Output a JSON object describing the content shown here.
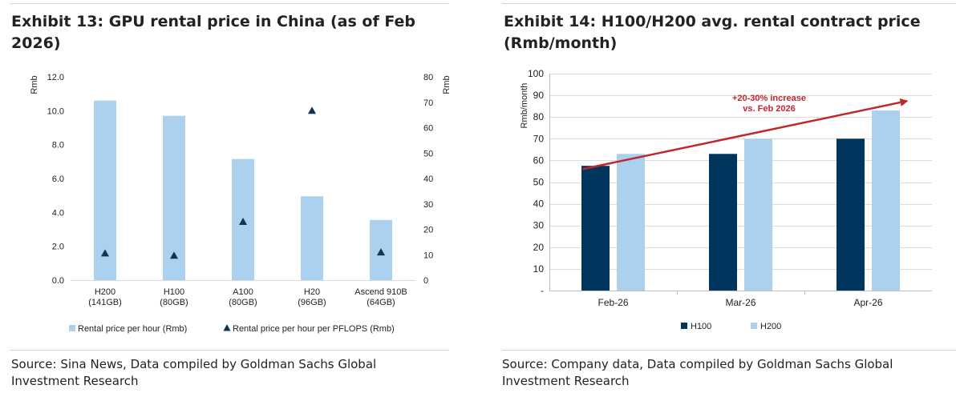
{
  "exhibits": [
    {
      "title": "Exhibit 13: GPU rental price in China (as of Feb 2026)",
      "source": "Source: Sina News, Data compiled by Goldman Sachs Global Investment Research"
    },
    {
      "title": "Exhibit 14: H100/H200 avg. rental contract price (Rmb/month)",
      "source": "Source: Company data, Data compiled by Goldman Sachs Global Investment Research"
    }
  ],
  "chart_data": [
    {
      "type": "bar",
      "categories": [
        [
          "H200",
          "(141GB)"
        ],
        [
          "H100",
          "(80GB)"
        ],
        [
          "A100",
          "(80GB)"
        ],
        [
          "H20",
          "(96GB)"
        ],
        [
          "Ascend 910B",
          "(64GB)"
        ]
      ],
      "series": [
        {
          "name": "Rental price per hour (Rmb)",
          "kind": "bar",
          "axis": "left",
          "values": [
            10.6,
            9.7,
            7.15,
            4.95,
            3.55
          ],
          "color": "#abd1ef"
        },
        {
          "name": "Rental price per hour per PFLOPS (Rmb)",
          "kind": "marker",
          "axis": "right",
          "values": [
            10.6,
            9.7,
            23.0,
            66.7,
            11.0
          ],
          "color": "#0c3558"
        }
      ],
      "ylabel": "Rmb",
      "y2label": "Rmb",
      "ylim": [
        0,
        12
      ],
      "y2lim": [
        0,
        80
      ],
      "yticks": [
        "0.0",
        "2.0",
        "4.0",
        "6.0",
        "8.0",
        "10.0",
        "12.0"
      ],
      "y2ticks": [
        "0",
        "10",
        "20",
        "30",
        "40",
        "50",
        "60",
        "70",
        "80"
      ],
      "grid": false,
      "legend": "bottom"
    },
    {
      "type": "bar",
      "categories": [
        "Feb-26",
        "Mar-26",
        "Apr-26"
      ],
      "series": [
        {
          "name": "H100",
          "values": [
            57.5,
            63,
            70
          ],
          "color": "#00355d"
        },
        {
          "name": "H200",
          "values": [
            63,
            70,
            83
          ],
          "color": "#abd1ef"
        }
      ],
      "ylabel": "Rmb/month",
      "ylim": [
        0,
        100
      ],
      "yticks": [
        "-",
        "10",
        "20",
        "30",
        "40",
        "50",
        "60",
        "70",
        "80",
        "90",
        "100"
      ],
      "grid": true,
      "legend": "bottom",
      "annotation": {
        "lines": [
          "+20-30% increase",
          "vs. Feb 2026"
        ],
        "color": "#c0272d",
        "from": [
          "Feb-26",
          56
        ],
        "to": [
          "Apr-26",
          87.5
        ]
      }
    }
  ]
}
